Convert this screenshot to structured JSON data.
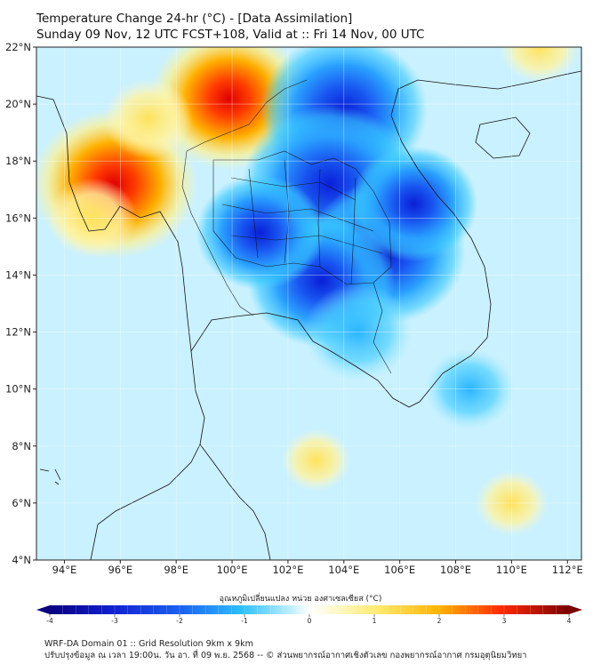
{
  "header": {
    "title_line1": "Temperature Change 24-hr (°C) - [Data Assimilation]",
    "title_line2": "Sunday 09 Nov, 12 UTC FCST+108, Valid at :: Fri 14 Nov, 00 UTC"
  },
  "map": {
    "lat_labels": [
      "22°N",
      "20°N",
      "18°N",
      "16°N",
      "14°N",
      "12°N",
      "10°N",
      "8°N",
      "6°N",
      "4°N"
    ],
    "lon_labels": [
      "94°E",
      "96°E",
      "98°E",
      "100°E",
      "102°E",
      "104°E",
      "106°E",
      "108°E",
      "110°E",
      "112°E"
    ],
    "lat_range": [
      4,
      22
    ],
    "lon_range": [
      93,
      112.5
    ],
    "field_anomalies": [
      {
        "lon": 95.8,
        "lat": 17.2,
        "value": 3.0
      },
      {
        "lon": 99.9,
        "lat": 20.2,
        "value": 2.8
      },
      {
        "lon": 97.0,
        "lat": 19.5,
        "value": 1.0
      },
      {
        "lon": 95.0,
        "lat": 16.0,
        "value": 1.0
      },
      {
        "lon": 104.0,
        "lat": 19.8,
        "value": -3.0
      },
      {
        "lon": 103.5,
        "lat": 17.2,
        "value": -3.2
      },
      {
        "lon": 105.5,
        "lat": 14.8,
        "value": -2.8
      },
      {
        "lon": 103.2,
        "lat": 13.8,
        "value": -2.5
      },
      {
        "lon": 106.5,
        "lat": 16.5,
        "value": -2.0
      },
      {
        "lon": 101.0,
        "lat": 15.5,
        "value": -2.0
      },
      {
        "lon": 104.5,
        "lat": 12.0,
        "value": -1.5
      },
      {
        "lon": 103.0,
        "lat": 7.5,
        "value": 0.5
      },
      {
        "lon": 110.0,
        "lat": 6.0,
        "value": 0.6
      },
      {
        "lon": 111.0,
        "lat": 22.0,
        "value": 0.8
      },
      {
        "lon": 108.5,
        "lat": 10.0,
        "value": -1.0
      }
    ]
  },
  "colorbar": {
    "title": "อุณหภูมิเปลี่ยนแปลง หน่วย องศาเซลเซียส (°C)",
    "tick_labels": [
      "-4",
      "-3",
      "-2",
      "-1",
      "0",
      "1",
      "2",
      "3",
      "4"
    ],
    "min": -4,
    "max": 4
  },
  "footer": {
    "line1": "WRF-DA Domain 01 :: Grid Resolution 9km x 9km",
    "line2": "ปรับปรุงข้อมูล ณ เวลา 19:00น. วัน อา. ที่ 09 พ.ย. 2568 -- © ส่วนพยากรณ์อากาศเชิงตัวเลข กองพยากรณ์อากาศ กรมอุตุนิยมวิทยา"
  }
}
